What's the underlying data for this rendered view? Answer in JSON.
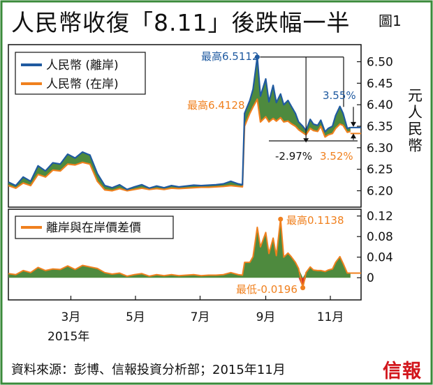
{
  "title": "人民幣收復「8.11」後跌幅一半",
  "figure_label": "圖1",
  "source": "資料來源：彭博、信報投資分析部；2015年11月",
  "logo": "信報",
  "colors": {
    "offshore": "#1f5aa0",
    "onshore": "#f0801e",
    "fill_green": "#4e8a3e",
    "fill_red": "#d9322c",
    "green_line": "#2c7a3a",
    "frame": "#111111"
  },
  "chart_data": [
    {
      "type": "line",
      "legend_position": "top-left",
      "ylim": [
        6.17,
        6.53
      ],
      "yticks": [
        "6.50",
        "6.45",
        "6.40",
        "6.35",
        "6.30",
        "6.25",
        "6.20"
      ],
      "ylabel": "元人民幣",
      "x_range": [
        "2015-01-01",
        "2015-11-30"
      ],
      "series": [
        {
          "name": "人民幣 (離岸)",
          "color": "#1f5aa0",
          "x": [
            "2015-01-01",
            "2015-01-08",
            "2015-01-15",
            "2015-01-22",
            "2015-01-29",
            "2015-02-05",
            "2015-02-12",
            "2015-02-19",
            "2015-02-26",
            "2015-03-05",
            "2015-03-12",
            "2015-03-19",
            "2015-03-26",
            "2015-04-02",
            "2015-04-09",
            "2015-04-16",
            "2015-04-23",
            "2015-04-30",
            "2015-05-07",
            "2015-05-14",
            "2015-05-21",
            "2015-05-28",
            "2015-06-04",
            "2015-06-11",
            "2015-06-18",
            "2015-06-25",
            "2015-07-02",
            "2015-07-09",
            "2015-07-16",
            "2015-07-23",
            "2015-07-30",
            "2015-08-06",
            "2015-08-10",
            "2015-08-12",
            "2015-08-17",
            "2015-08-20",
            "2015-08-24",
            "2015-08-27",
            "2015-09-01",
            "2015-09-04",
            "2015-09-08",
            "2015-09-11",
            "2015-09-15",
            "2015-09-18",
            "2015-09-22",
            "2015-09-25",
            "2015-09-29",
            "2015-10-02",
            "2015-10-06",
            "2015-10-09",
            "2015-10-13",
            "2015-10-16",
            "2015-10-20",
            "2015-10-23",
            "2015-10-27",
            "2015-10-30",
            "2015-11-03",
            "2015-11-06",
            "2015-11-10",
            "2015-11-13",
            "2015-11-17",
            "2015-11-20"
          ],
          "y": [
            6.22,
            6.212,
            6.232,
            6.222,
            6.258,
            6.246,
            6.265,
            6.262,
            6.285,
            6.276,
            6.29,
            6.283,
            6.24,
            6.212,
            6.207,
            6.214,
            6.203,
            6.209,
            6.214,
            6.206,
            6.211,
            6.207,
            6.212,
            6.209,
            6.211,
            6.213,
            6.212,
            6.213,
            6.214,
            6.216,
            6.222,
            6.216,
            6.214,
            6.38,
            6.41,
            6.436,
            6.511,
            6.42,
            6.46,
            6.407,
            6.445,
            6.405,
            6.425,
            6.4,
            6.41,
            6.397,
            6.38,
            6.36,
            6.35,
            6.34,
            6.366,
            6.355,
            6.352,
            6.364,
            6.337,
            6.345,
            6.35,
            6.375,
            6.396,
            6.38,
            6.345,
            6.347
          ]
        },
        {
          "name": "人民幣 (在岸)",
          "color": "#f0801e",
          "x": [
            "2015-01-01",
            "2015-01-08",
            "2015-01-15",
            "2015-01-22",
            "2015-01-29",
            "2015-02-05",
            "2015-02-12",
            "2015-02-19",
            "2015-02-26",
            "2015-03-05",
            "2015-03-12",
            "2015-03-19",
            "2015-03-26",
            "2015-04-02",
            "2015-04-09",
            "2015-04-16",
            "2015-04-23",
            "2015-04-30",
            "2015-05-07",
            "2015-05-14",
            "2015-05-21",
            "2015-05-28",
            "2015-06-04",
            "2015-06-11",
            "2015-06-18",
            "2015-06-25",
            "2015-07-02",
            "2015-07-09",
            "2015-07-16",
            "2015-07-23",
            "2015-07-30",
            "2015-08-06",
            "2015-08-10",
            "2015-08-12",
            "2015-08-17",
            "2015-08-20",
            "2015-08-24",
            "2015-08-27",
            "2015-09-01",
            "2015-09-04",
            "2015-09-08",
            "2015-09-11",
            "2015-09-15",
            "2015-09-18",
            "2015-09-22",
            "2015-09-25",
            "2015-09-29",
            "2015-10-02",
            "2015-10-06",
            "2015-10-09",
            "2015-10-13",
            "2015-10-16",
            "2015-10-20",
            "2015-10-23",
            "2015-10-27",
            "2015-10-30",
            "2015-11-03",
            "2015-11-06",
            "2015-11-10",
            "2015-11-13",
            "2015-11-17",
            "2015-11-20"
          ],
          "y": [
            6.212,
            6.206,
            6.218,
            6.212,
            6.238,
            6.232,
            6.248,
            6.246,
            6.262,
            6.26,
            6.266,
            6.262,
            6.222,
            6.202,
            6.2,
            6.205,
            6.2,
            6.203,
            6.206,
            6.203,
            6.205,
            6.203,
            6.206,
            6.205,
            6.206,
            6.207,
            6.208,
            6.208,
            6.209,
            6.21,
            6.212,
            6.21,
            6.209,
            6.35,
            6.38,
            6.395,
            6.4128,
            6.36,
            6.372,
            6.36,
            6.368,
            6.362,
            6.37,
            6.36,
            6.362,
            6.356,
            6.35,
            6.342,
            6.335,
            6.33,
            6.345,
            6.34,
            6.338,
            6.35,
            6.325,
            6.33,
            6.333,
            6.345,
            6.355,
            6.352,
            6.336,
            6.338
          ]
        }
      ],
      "annotations": {
        "offshore_high": "最高6.5112",
        "onshore_high": "最高6.4128",
        "offshore_change": "3.55%",
        "offshore_retrace": "-2.97%",
        "onshore_change": "3.52%"
      }
    },
    {
      "type": "area",
      "ylim": [
        -0.035,
        0.125
      ],
      "yticks": [
        "0.12",
        "0.08",
        "0.04",
        "0"
      ],
      "series": [
        {
          "name": "離岸與在岸價差價",
          "color": "#f0801e",
          "x": [
            "2015-01-01",
            "2015-01-08",
            "2015-01-15",
            "2015-01-22",
            "2015-01-29",
            "2015-02-05",
            "2015-02-12",
            "2015-02-19",
            "2015-02-26",
            "2015-03-05",
            "2015-03-12",
            "2015-03-19",
            "2015-03-26",
            "2015-04-02",
            "2015-04-09",
            "2015-04-16",
            "2015-04-23",
            "2015-04-30",
            "2015-05-07",
            "2015-05-14",
            "2015-05-21",
            "2015-05-28",
            "2015-06-04",
            "2015-06-11",
            "2015-06-18",
            "2015-06-25",
            "2015-07-02",
            "2015-07-09",
            "2015-07-16",
            "2015-07-23",
            "2015-07-30",
            "2015-08-06",
            "2015-08-10",
            "2015-08-12",
            "2015-08-17",
            "2015-08-20",
            "2015-08-24",
            "2015-08-27",
            "2015-09-01",
            "2015-09-04",
            "2015-09-08",
            "2015-09-11",
            "2015-09-15",
            "2015-09-18",
            "2015-09-22",
            "2015-09-25",
            "2015-09-29",
            "2015-10-02",
            "2015-10-06",
            "2015-10-09",
            "2015-10-13",
            "2015-10-16",
            "2015-10-20",
            "2015-10-23",
            "2015-10-27",
            "2015-10-30",
            "2015-11-03",
            "2015-11-06",
            "2015-11-10",
            "2015-11-13",
            "2015-11-17",
            "2015-11-20"
          ],
          "y": [
            0.008,
            0.006,
            0.014,
            0.01,
            0.02,
            0.014,
            0.017,
            0.016,
            0.023,
            0.016,
            0.024,
            0.021,
            0.018,
            0.01,
            0.007,
            0.009,
            0.003,
            0.006,
            0.008,
            0.003,
            0.006,
            0.004,
            0.006,
            0.004,
            0.005,
            0.006,
            0.004,
            0.005,
            0.005,
            0.006,
            0.01,
            0.006,
            0.005,
            0.03,
            0.03,
            0.041,
            0.098,
            0.06,
            0.088,
            0.047,
            0.077,
            0.043,
            0.1138,
            0.04,
            0.048,
            0.041,
            0.03,
            0.018,
            -0.0196,
            0.01,
            0.021,
            0.015,
            0.014,
            0.014,
            0.012,
            0.015,
            0.017,
            0.03,
            0.041,
            0.028,
            0.009,
            0.009
          ]
        }
      ],
      "annotations": {
        "spread_high": "最高0.1138",
        "spread_low": "最低-0.0196"
      }
    }
  ],
  "x_axis": {
    "ticks": [
      {
        "label": "3月",
        "date": "2015-03-01"
      },
      {
        "label": "5月",
        "date": "2015-05-01"
      },
      {
        "label": "7月",
        "date": "2015-07-01"
      },
      {
        "label": "9月",
        "date": "2015-09-01"
      },
      {
        "label": "11月",
        "date": "2015-11-01"
      }
    ],
    "year_label": "2015年"
  }
}
